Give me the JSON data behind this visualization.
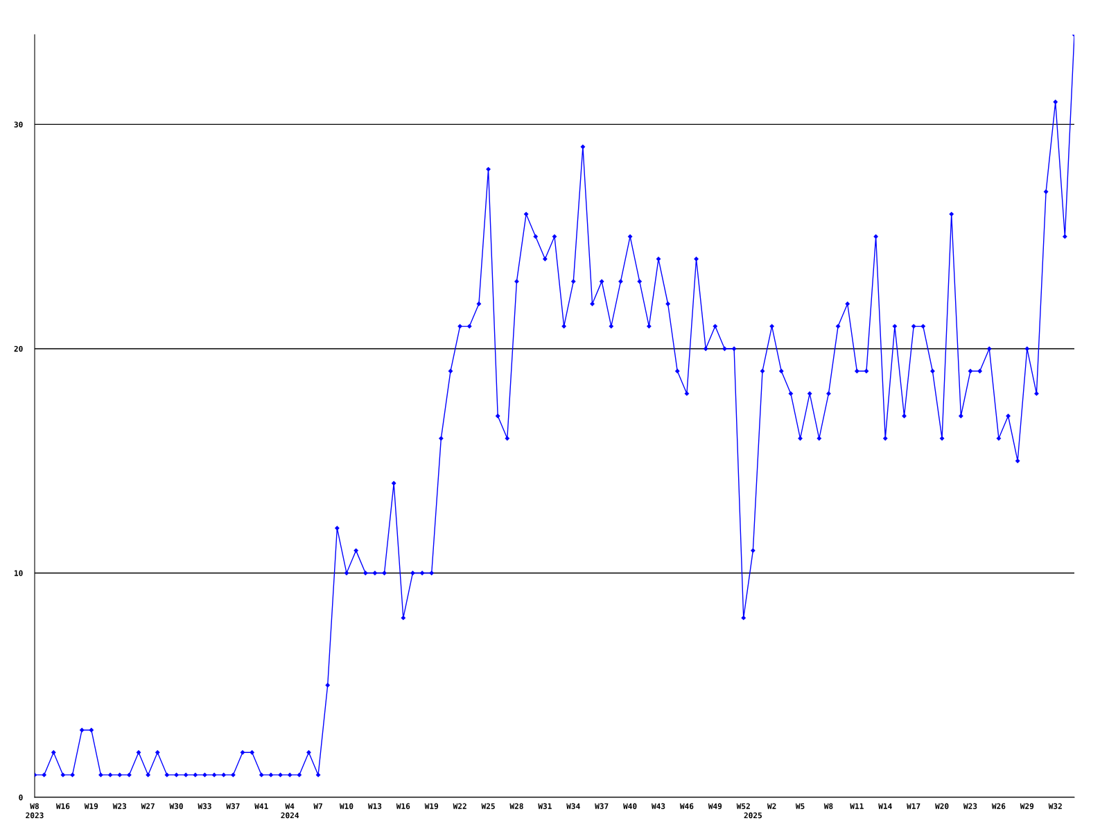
{
  "chart_data": {
    "type": "line",
    "categories": [
      "W8\n2023",
      null,
      null,
      "W16",
      null,
      null,
      "W19",
      null,
      null,
      "W23",
      null,
      null,
      "W27",
      null,
      null,
      "W30",
      null,
      null,
      "W33",
      null,
      null,
      "W37",
      null,
      null,
      "W41",
      null,
      null,
      "W4\n2024",
      null,
      null,
      "W7",
      null,
      null,
      "W10",
      null,
      null,
      "W13",
      null,
      null,
      "W16",
      null,
      null,
      "W19",
      null,
      null,
      "W22",
      null,
      null,
      "W25",
      null,
      null,
      "W28",
      null,
      null,
      "W31",
      null,
      null,
      "W34",
      null,
      null,
      "W37",
      null,
      null,
      "W40",
      null,
      null,
      "W43",
      null,
      null,
      "W46",
      null,
      null,
      "W49",
      null,
      null,
      "W52",
      "\n2025",
      null,
      "W2",
      null,
      null,
      "W5",
      null,
      null,
      "W8",
      null,
      null,
      "W11",
      null,
      null,
      "W14",
      null,
      null,
      "W17",
      null,
      null,
      "W20",
      null,
      null,
      "W23",
      null,
      null,
      "W26",
      null,
      null,
      "W29",
      null,
      null,
      "W32",
      null,
      null
    ],
    "series": [
      {
        "color": "#0000ff",
        "values": [
          1,
          1,
          2,
          1,
          1,
          3,
          3,
          1,
          1,
          1,
          1,
          2,
          1,
          2,
          1,
          1,
          1,
          1,
          1,
          1,
          1,
          1,
          2,
          2,
          1,
          1,
          1,
          1,
          1,
          2,
          1,
          5,
          12,
          10,
          11,
          10,
          10,
          10,
          14,
          8,
          10,
          10,
          10,
          16,
          19,
          21,
          21,
          22,
          28,
          17,
          16,
          23,
          26,
          25,
          24,
          25,
          21,
          23,
          29,
          22,
          23,
          21,
          23,
          25,
          23,
          21,
          24,
          22,
          19,
          18,
          24,
          20,
          21,
          20,
          20,
          8,
          11,
          19,
          21,
          19,
          18,
          16,
          18,
          16,
          18,
          21,
          22,
          19,
          19,
          25,
          16,
          21,
          17,
          21,
          21,
          19,
          16,
          26,
          17,
          19,
          19,
          20,
          16,
          17,
          15,
          20,
          18,
          27,
          31,
          25,
          34
        ]
      }
    ],
    "ylim": [
      0,
      34
    ],
    "yticks": [
      0,
      10,
      20,
      30
    ],
    "grid": "y",
    "marker": "diamond",
    "line_style": "solid"
  }
}
